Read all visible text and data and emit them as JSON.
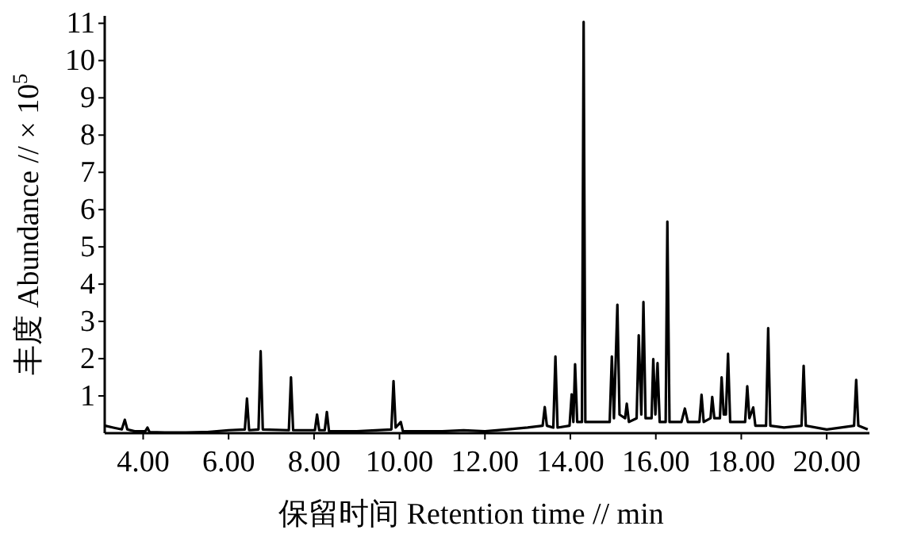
{
  "chart_data": {
    "type": "line",
    "xlabel": "保留时间 Retention time // min",
    "ylabel": "丰度 Abundance // × 10$^{5}$",
    "xlim": [
      3.1,
      21.0
    ],
    "ylim": [
      0,
      11.2
    ],
    "xticks": [
      {
        "value": 4,
        "label": "4.00"
      },
      {
        "value": 6,
        "label": "6.00"
      },
      {
        "value": 8,
        "label": "8.00"
      },
      {
        "value": 10,
        "label": "10.00"
      },
      {
        "value": 12,
        "label": "12.00"
      },
      {
        "value": 14,
        "label": "14.00"
      },
      {
        "value": 16,
        "label": "16.00"
      },
      {
        "value": 18,
        "label": "18.00"
      },
      {
        "value": 20,
        "label": "20.00"
      }
    ],
    "yticks": [
      1,
      2,
      3,
      4,
      5,
      6,
      7,
      8,
      9,
      10,
      11
    ],
    "series": [
      {
        "color": "#000000",
        "x": [
          3.11,
          3.3,
          3.5,
          3.57,
          3.63,
          3.8,
          4.05,
          4.1,
          4.15,
          4.5,
          5.0,
          5.5,
          6.0,
          6.38,
          6.43,
          6.48,
          6.7,
          6.75,
          6.8,
          7.41,
          7.46,
          7.51,
          8.02,
          8.07,
          8.12,
          8.25,
          8.3,
          8.35,
          9.0,
          9.81,
          9.86,
          9.91,
          10.03,
          10.08,
          10.5,
          11.0,
          11.5,
          12.0,
          12.5,
          13.0,
          13.35,
          13.4,
          13.45,
          13.6,
          13.65,
          13.7,
          13.98,
          14.03,
          14.07,
          14.11,
          14.16,
          14.27,
          14.31,
          14.35,
          14.6,
          14.92,
          14.97,
          15.02,
          15.1,
          15.15,
          15.28,
          15.32,
          15.37,
          15.55,
          15.6,
          15.66,
          15.71,
          15.76,
          15.9,
          15.94,
          15.99,
          16.04,
          16.09,
          16.23,
          16.27,
          16.32,
          16.6,
          16.68,
          16.75,
          17.02,
          17.07,
          17.12,
          17.28,
          17.32,
          17.37,
          17.5,
          17.54,
          17.59,
          17.64,
          17.69,
          17.74,
          18.09,
          18.14,
          18.19,
          18.28,
          18.33,
          18.58,
          18.63,
          18.68,
          19.0,
          19.41,
          19.46,
          19.51,
          20.0,
          20.64,
          20.69,
          20.74,
          20.96
        ],
        "values": [
          0.2,
          0.15,
          0.1,
          0.36,
          0.1,
          0.05,
          0.05,
          0.15,
          0.03,
          0.02,
          0.02,
          0.03,
          0.08,
          0.1,
          0.93,
          0.08,
          0.1,
          2.2,
          0.1,
          0.08,
          1.5,
          0.08,
          0.08,
          0.5,
          0.08,
          0.08,
          0.57,
          0.05,
          0.05,
          0.1,
          1.4,
          0.15,
          0.3,
          0.05,
          0.05,
          0.05,
          0.08,
          0.05,
          0.1,
          0.15,
          0.2,
          0.7,
          0.2,
          0.15,
          2.06,
          0.15,
          0.2,
          1.04,
          0.3,
          1.85,
          0.3,
          0.3,
          11.04,
          0.3,
          0.3,
          0.3,
          2.06,
          0.4,
          3.45,
          0.5,
          0.4,
          0.79,
          0.3,
          0.4,
          2.63,
          0.5,
          3.52,
          0.4,
          0.4,
          1.99,
          0.5,
          1.88,
          0.3,
          0.3,
          5.68,
          0.3,
          0.3,
          0.66,
          0.3,
          0.3,
          1.03,
          0.3,
          0.4,
          0.97,
          0.4,
          0.4,
          1.5,
          0.5,
          0.5,
          2.13,
          0.3,
          0.3,
          1.26,
          0.4,
          0.69,
          0.2,
          0.2,
          2.82,
          0.2,
          0.15,
          0.2,
          1.81,
          0.2,
          0.1,
          0.2,
          1.43,
          0.2,
          0.1
        ]
      }
    ]
  }
}
